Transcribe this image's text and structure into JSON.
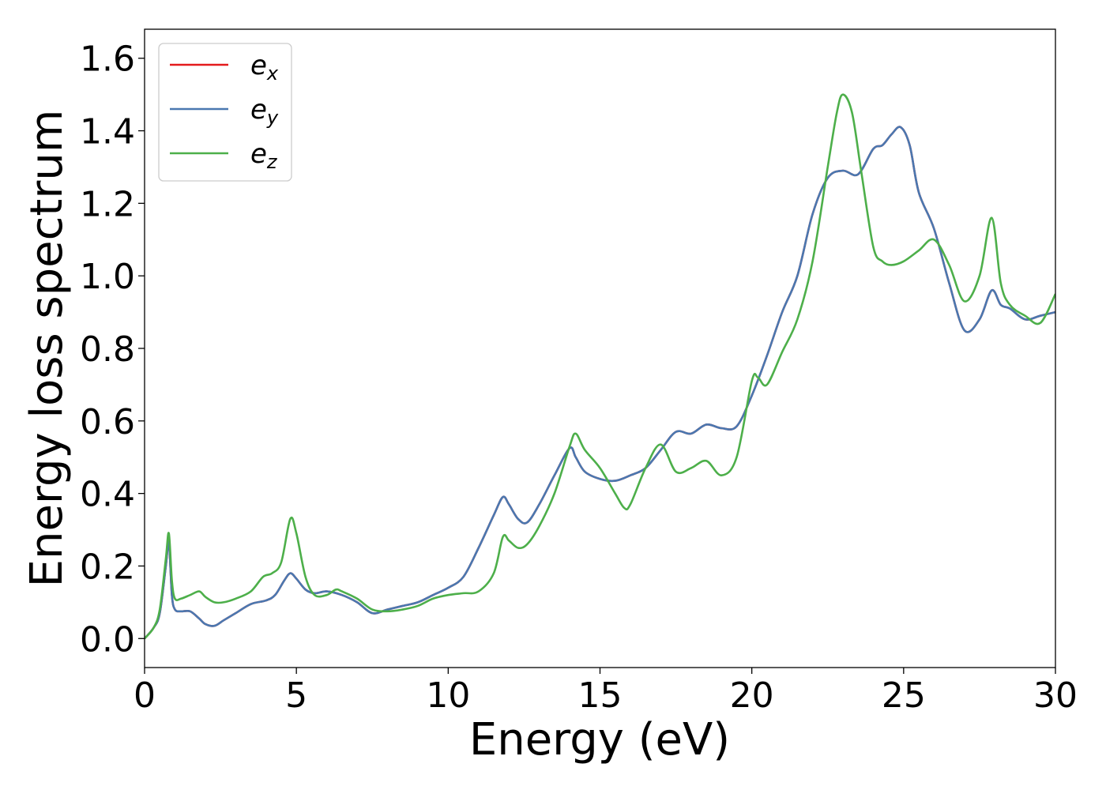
{
  "chart_data": {
    "type": "line",
    "xlabel": "Energy (eV)",
    "ylabel": "Energy loss spectrum",
    "xlim": [
      0,
      30
    ],
    "ylim": [
      -0.08,
      1.68
    ],
    "x_ticks": [
      0,
      5,
      10,
      15,
      20,
      25,
      30
    ],
    "y_ticks": [
      0.0,
      0.2,
      0.4,
      0.6,
      0.8,
      1.0,
      1.2,
      1.4,
      1.6
    ],
    "x_tick_labels": [
      "0",
      "5",
      "10",
      "15",
      "20",
      "25",
      "30"
    ],
    "y_tick_labels": [
      "0.0",
      "0.2",
      "0.4",
      "0.6",
      "0.8",
      "1.0",
      "1.2",
      "1.4",
      "1.6"
    ],
    "grid": false,
    "legend_position": "top-left",
    "series": [
      {
        "name": "e_x",
        "legend_base": "e",
        "legend_sub": "x",
        "color": "#e41a1c",
        "x": [
          0,
          0.3,
          0.5,
          0.7,
          0.8,
          0.9,
          1.0,
          1.2,
          1.5,
          1.8,
          2.0,
          2.3,
          2.6,
          3.0,
          3.5,
          4.0,
          4.3,
          4.6,
          4.8,
          5.0,
          5.3,
          5.6,
          6.0,
          6.5,
          7.0,
          7.5,
          8.0,
          8.5,
          9.0,
          9.5,
          10.0,
          10.5,
          11.0,
          11.5,
          11.8,
          12.0,
          12.3,
          12.6,
          13.0,
          13.5,
          14.0,
          14.2,
          14.5,
          15.0,
          15.5,
          16.0,
          16.5,
          17.0,
          17.5,
          18.0,
          18.5,
          19.0,
          19.5,
          20.0,
          20.5,
          21.0,
          21.5,
          22.0,
          22.5,
          23.0,
          23.5,
          24.0,
          24.3,
          24.6,
          24.9,
          25.2,
          25.5,
          26.0,
          26.5,
          27.0,
          27.5,
          27.9,
          28.2,
          28.5,
          29.0,
          29.5,
          30.0
        ],
        "y": [
          0.0,
          0.03,
          0.07,
          0.2,
          0.265,
          0.12,
          0.08,
          0.075,
          0.075,
          0.055,
          0.04,
          0.035,
          0.05,
          0.07,
          0.095,
          0.105,
          0.12,
          0.16,
          0.18,
          0.165,
          0.135,
          0.125,
          0.13,
          0.12,
          0.1,
          0.07,
          0.08,
          0.09,
          0.1,
          0.12,
          0.14,
          0.17,
          0.25,
          0.34,
          0.39,
          0.37,
          0.33,
          0.32,
          0.37,
          0.45,
          0.525,
          0.5,
          0.46,
          0.44,
          0.435,
          0.45,
          0.47,
          0.52,
          0.57,
          0.565,
          0.59,
          0.58,
          0.585,
          0.67,
          0.78,
          0.9,
          1.0,
          1.17,
          1.27,
          1.29,
          1.28,
          1.35,
          1.36,
          1.39,
          1.41,
          1.36,
          1.23,
          1.13,
          0.98,
          0.85,
          0.88,
          0.96,
          0.92,
          0.91,
          0.88,
          0.89,
          0.9
        ]
      },
      {
        "name": "e_y",
        "legend_base": "e",
        "legend_sub": "y",
        "color": "#4a78b0",
        "x": [
          0,
          0.3,
          0.5,
          0.7,
          0.8,
          0.9,
          1.0,
          1.2,
          1.5,
          1.8,
          2.0,
          2.3,
          2.6,
          3.0,
          3.5,
          4.0,
          4.3,
          4.6,
          4.8,
          5.0,
          5.3,
          5.6,
          6.0,
          6.5,
          7.0,
          7.5,
          8.0,
          8.5,
          9.0,
          9.5,
          10.0,
          10.5,
          11.0,
          11.5,
          11.8,
          12.0,
          12.3,
          12.6,
          13.0,
          13.5,
          14.0,
          14.2,
          14.5,
          15.0,
          15.5,
          16.0,
          16.5,
          17.0,
          17.5,
          18.0,
          18.5,
          19.0,
          19.5,
          20.0,
          20.5,
          21.0,
          21.5,
          22.0,
          22.5,
          23.0,
          23.5,
          24.0,
          24.3,
          24.6,
          24.9,
          25.2,
          25.5,
          26.0,
          26.5,
          27.0,
          27.5,
          27.9,
          28.2,
          28.5,
          29.0,
          29.5,
          30.0
        ],
        "y": [
          0.0,
          0.03,
          0.07,
          0.2,
          0.265,
          0.12,
          0.08,
          0.075,
          0.075,
          0.055,
          0.04,
          0.035,
          0.05,
          0.07,
          0.095,
          0.105,
          0.12,
          0.16,
          0.18,
          0.165,
          0.135,
          0.125,
          0.13,
          0.12,
          0.1,
          0.07,
          0.08,
          0.09,
          0.1,
          0.12,
          0.14,
          0.17,
          0.25,
          0.34,
          0.39,
          0.37,
          0.33,
          0.32,
          0.37,
          0.45,
          0.525,
          0.5,
          0.46,
          0.44,
          0.435,
          0.45,
          0.47,
          0.52,
          0.57,
          0.565,
          0.59,
          0.58,
          0.585,
          0.67,
          0.78,
          0.9,
          1.0,
          1.17,
          1.27,
          1.29,
          1.28,
          1.35,
          1.36,
          1.39,
          1.41,
          1.36,
          1.23,
          1.13,
          0.98,
          0.85,
          0.88,
          0.96,
          0.92,
          0.91,
          0.88,
          0.89,
          0.9
        ]
      },
      {
        "name": "e_z",
        "legend_base": "e",
        "legend_sub": "z",
        "color": "#4daf4a",
        "x": [
          0,
          0.3,
          0.5,
          0.7,
          0.8,
          0.9,
          1.0,
          1.2,
          1.5,
          1.8,
          2.0,
          2.3,
          2.6,
          3.0,
          3.5,
          3.9,
          4.2,
          4.5,
          4.8,
          5.0,
          5.3,
          5.6,
          6.0,
          6.3,
          6.5,
          7.0,
          7.5,
          8.0,
          8.5,
          9.0,
          9.5,
          10.0,
          10.5,
          11.0,
          11.5,
          11.8,
          12.0,
          12.3,
          12.6,
          13.0,
          13.5,
          14.0,
          14.2,
          14.5,
          15.0,
          15.5,
          15.8,
          16.0,
          16.5,
          17.0,
          17.5,
          18.0,
          18.5,
          19.0,
          19.5,
          20.0,
          20.2,
          20.5,
          21.0,
          21.5,
          22.0,
          22.5,
          22.8,
          23.0,
          23.3,
          23.6,
          24.0,
          24.3,
          24.6,
          25.0,
          25.5,
          26.0,
          26.5,
          27.0,
          27.5,
          27.9,
          28.2,
          28.5,
          29.0,
          29.5,
          30.0
        ],
        "y": [
          0.0,
          0.03,
          0.08,
          0.22,
          0.29,
          0.16,
          0.11,
          0.11,
          0.12,
          0.13,
          0.115,
          0.1,
          0.1,
          0.11,
          0.13,
          0.17,
          0.18,
          0.21,
          0.33,
          0.29,
          0.17,
          0.12,
          0.12,
          0.135,
          0.13,
          0.11,
          0.08,
          0.075,
          0.08,
          0.09,
          0.11,
          0.12,
          0.125,
          0.13,
          0.18,
          0.28,
          0.27,
          0.25,
          0.26,
          0.31,
          0.4,
          0.53,
          0.565,
          0.52,
          0.47,
          0.4,
          0.36,
          0.37,
          0.47,
          0.535,
          0.46,
          0.47,
          0.49,
          0.45,
          0.5,
          0.71,
          0.72,
          0.7,
          0.79,
          0.88,
          1.04,
          1.3,
          1.45,
          1.5,
          1.45,
          1.29,
          1.08,
          1.04,
          1.03,
          1.04,
          1.07,
          1.1,
          1.03,
          0.93,
          1.0,
          1.16,
          0.98,
          0.92,
          0.89,
          0.87,
          0.95
        ]
      }
    ]
  }
}
